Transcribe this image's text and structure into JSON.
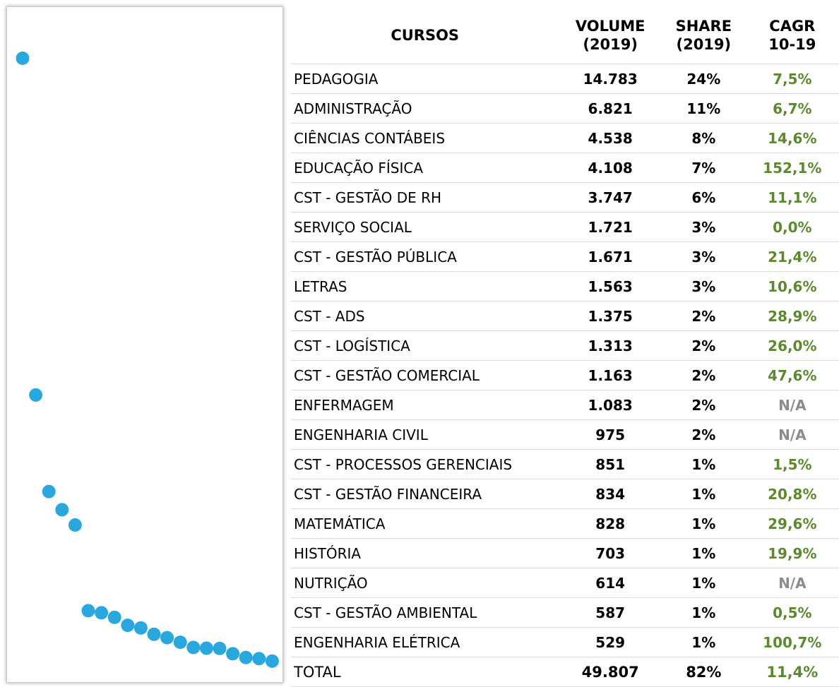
{
  "table": {
    "header": [
      [
        "CURSOS"
      ],
      [
        "VOLUME",
        "(2019)"
      ],
      [
        "SHARE",
        "(2019)"
      ],
      [
        "CAGR",
        "10-19"
      ]
    ],
    "rows": [
      [
        "PEDAGOGIA",
        "14.783",
        "24%",
        "7,5%"
      ],
      [
        "ADMINISTRAÇÃO",
        "6.821",
        "11%",
        "6,7%"
      ],
      [
        "CIÊNCIAS CONTÁBEIS",
        "4.538",
        "8%",
        "14,6%"
      ],
      [
        "EDUCAÇÃO FÍSICA",
        "4.108",
        "7%",
        "152,1%"
      ],
      [
        "CST - GESTÃO DE RH",
        "3.747",
        "6%",
        "11,1%"
      ],
      [
        "SERVIÇO SOCIAL",
        "1.721",
        "3%",
        "0,0%"
      ],
      [
        "CST - GESTÃO PÚBLICA",
        "1.671",
        "3%",
        "21,4%"
      ],
      [
        "LETRAS",
        "1.563",
        "3%",
        "10,6%"
      ],
      [
        "CST - ADS",
        "1.375",
        "2%",
        "28,9%"
      ],
      [
        "CST - LOGÍSTICA",
        "1.313",
        "2%",
        "26,0%"
      ],
      [
        "CST - GESTÃO COMERCIAL",
        "1.163",
        "2%",
        "47,6%"
      ],
      [
        "ENFERMAGEM",
        "1.083",
        "2%",
        "N/A"
      ],
      [
        "ENGENHARIA CIVIL",
        "975",
        "2%",
        "N/A"
      ],
      [
        "CST - PROCESSOS GERENCIAIS",
        "851",
        "1%",
        "1,5%"
      ],
      [
        "CST - GESTÃO FINANCEIRA",
        "834",
        "1%",
        "20,8%"
      ],
      [
        "MATEMÁTICA",
        "828",
        "1%",
        "29,6%"
      ],
      [
        "HISTÓRIA",
        "703",
        "1%",
        "19,9%"
      ],
      [
        "NUTRIÇÃO",
        "614",
        "1%",
        "N/A"
      ],
      [
        "CST - GESTÃO AMBIENTAL",
        "587",
        "1%",
        "0,5%"
      ],
      [
        "ENGENHARIA ELÉTRICA",
        "529",
        "1%",
        "100,7%"
      ]
    ],
    "total": [
      "TOTAL",
      "49.807",
      "82%",
      "11,4%"
    ]
  }
}
